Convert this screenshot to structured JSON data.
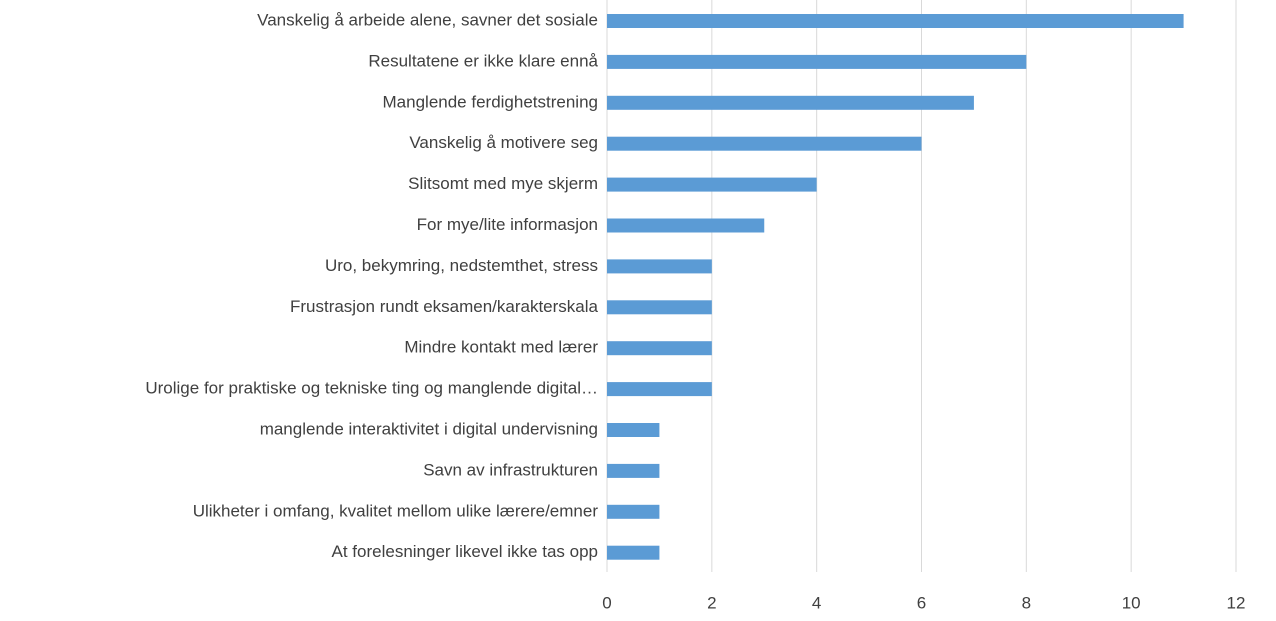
{
  "chart_data": {
    "type": "bar",
    "orientation": "horizontal",
    "categories": [
      "Vanskelig å arbeide alene, savner det sosiale",
      "Resultatene er ikke klare ennå",
      "Manglende ferdighetstrening",
      "Vanskelig å motivere seg",
      "Slitsomt med mye skjerm",
      "For mye/lite informasjon",
      "Uro,  bekymring, nedstemthet, stress",
      "Frustrasjon rundt eksamen/karakterskala",
      "Mindre kontakt med lærer",
      "Urolige for praktiske og tekniske ting og manglende digital…",
      "manglende interaktivitet i digital undervisning",
      "Savn av infrastrukturen",
      "Ulikheter i omfang, kvalitet mellom ulike lærere/emner",
      "At forelesninger likevel ikke tas opp"
    ],
    "values": [
      11,
      8,
      7,
      6,
      4,
      3,
      2,
      2,
      2,
      2,
      1,
      1,
      1,
      1
    ],
    "color": "#5b9bd5",
    "xlim": [
      0,
      12
    ],
    "xticks": [
      0,
      2,
      4,
      6,
      8,
      10,
      12
    ],
    "grid": true
  }
}
